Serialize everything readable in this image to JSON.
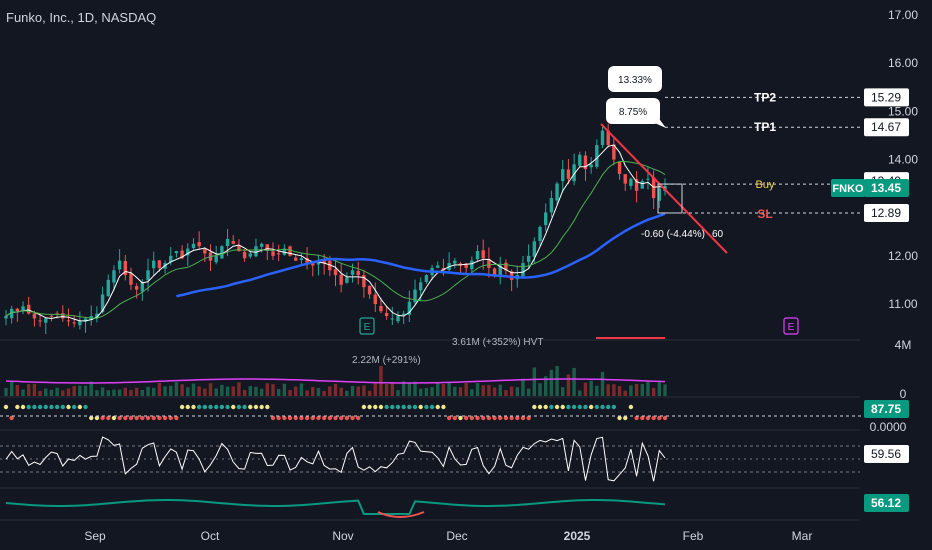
{
  "header": {
    "title": "Funko, Inc., 1D, NASDAQ"
  },
  "colors": {
    "background": "#131722",
    "up": "#26a69a",
    "down": "#ef5350",
    "ma_slow": "#2962ff",
    "ma_fast": "#4caf50",
    "bb_line": "#ffffff",
    "trendline": "#f23645",
    "label_box": "#ffffff",
    "fnko_tag": "#089981",
    "volume_ma": "#e040fb",
    "rsi_line": "#ffffff",
    "adx_line": "#089981"
  },
  "chart_data": {
    "type": "candlestick",
    "title": "Funko, Inc., 1D, NASDAQ",
    "x_ticks": [
      "Sep",
      "Oct",
      "Nov",
      "Dec",
      "2025",
      "Feb",
      "Mar"
    ],
    "y_ticks": [
      "17.00",
      "16.00",
      "15.00",
      "14.00",
      "12.00",
      "11.00"
    ],
    "ylim": [
      10.7,
      17.2
    ],
    "closes": [
      10.75,
      10.9,
      10.85,
      10.95,
      10.8,
      10.7,
      10.65,
      10.7,
      10.75,
      10.8,
      10.7,
      10.65,
      10.6,
      10.65,
      10.7,
      10.75,
      10.8,
      11.2,
      11.5,
      11.7,
      11.9,
      11.6,
      11.4,
      11.3,
      11.45,
      11.7,
      11.9,
      11.75,
      11.85,
      12.0,
      12.1,
      11.95,
      12.15,
      12.25,
      12.2,
      12.05,
      11.9,
      12.0,
      12.2,
      12.35,
      12.25,
      12.1,
      11.95,
      12.05,
      12.2,
      12.25,
      12.1,
      12.0,
      12.05,
      12.15,
      12.0,
      11.9,
      11.95,
      11.85,
      11.8,
      11.9,
      11.85,
      11.7,
      11.6,
      11.4,
      11.55,
      11.7,
      11.6,
      11.35,
      11.2,
      11.0,
      10.85,
      10.75,
      10.7,
      10.75,
      10.8,
      11.05,
      11.3,
      11.45,
      11.6,
      11.75,
      11.8,
      11.7,
      11.85,
      11.9,
      11.8,
      11.75,
      11.9,
      12.1,
      11.95,
      11.75,
      11.6,
      11.8,
      11.7,
      11.5,
      11.6,
      11.85,
      12.0,
      12.3,
      12.6,
      12.9,
      13.2,
      13.5,
      13.8,
      13.6,
      13.9,
      14.1,
      13.8,
      13.9,
      14.3,
      14.6,
      14.3,
      14.0,
      13.7,
      13.5,
      13.6,
      13.35,
      13.55,
      13.6,
      13.2,
      13.4,
      13.45
    ],
    "annotations": {
      "price_change": "-0.60 (-4.44%)",
      "price_change_suffix": "60",
      "pct_label_1": "13.33%",
      "pct_label_2": "8.75%",
      "buy_label": "Buy",
      "sl_label": "SL",
      "tp1_label": "TP1",
      "tp2_label": "TP2",
      "earnings_marker": "E"
    },
    "price_tags": {
      "tp2": "15.29",
      "tp1": "14.67",
      "tp0": "13.49",
      "current": "13.45",
      "sl": "12.89",
      "symbol": "FNKO"
    },
    "volume": {
      "axis_labels": [
        "4M",
        "0"
      ],
      "annotation_1": "2.22M (+291%)",
      "annotation_2": "3.61M (+352%) HVT"
    },
    "indicator1": {
      "value": "87.75",
      "zero_label": "0.0000"
    },
    "rsi": {
      "value": "59.56"
    },
    "adx": {
      "value": "56.12"
    }
  }
}
